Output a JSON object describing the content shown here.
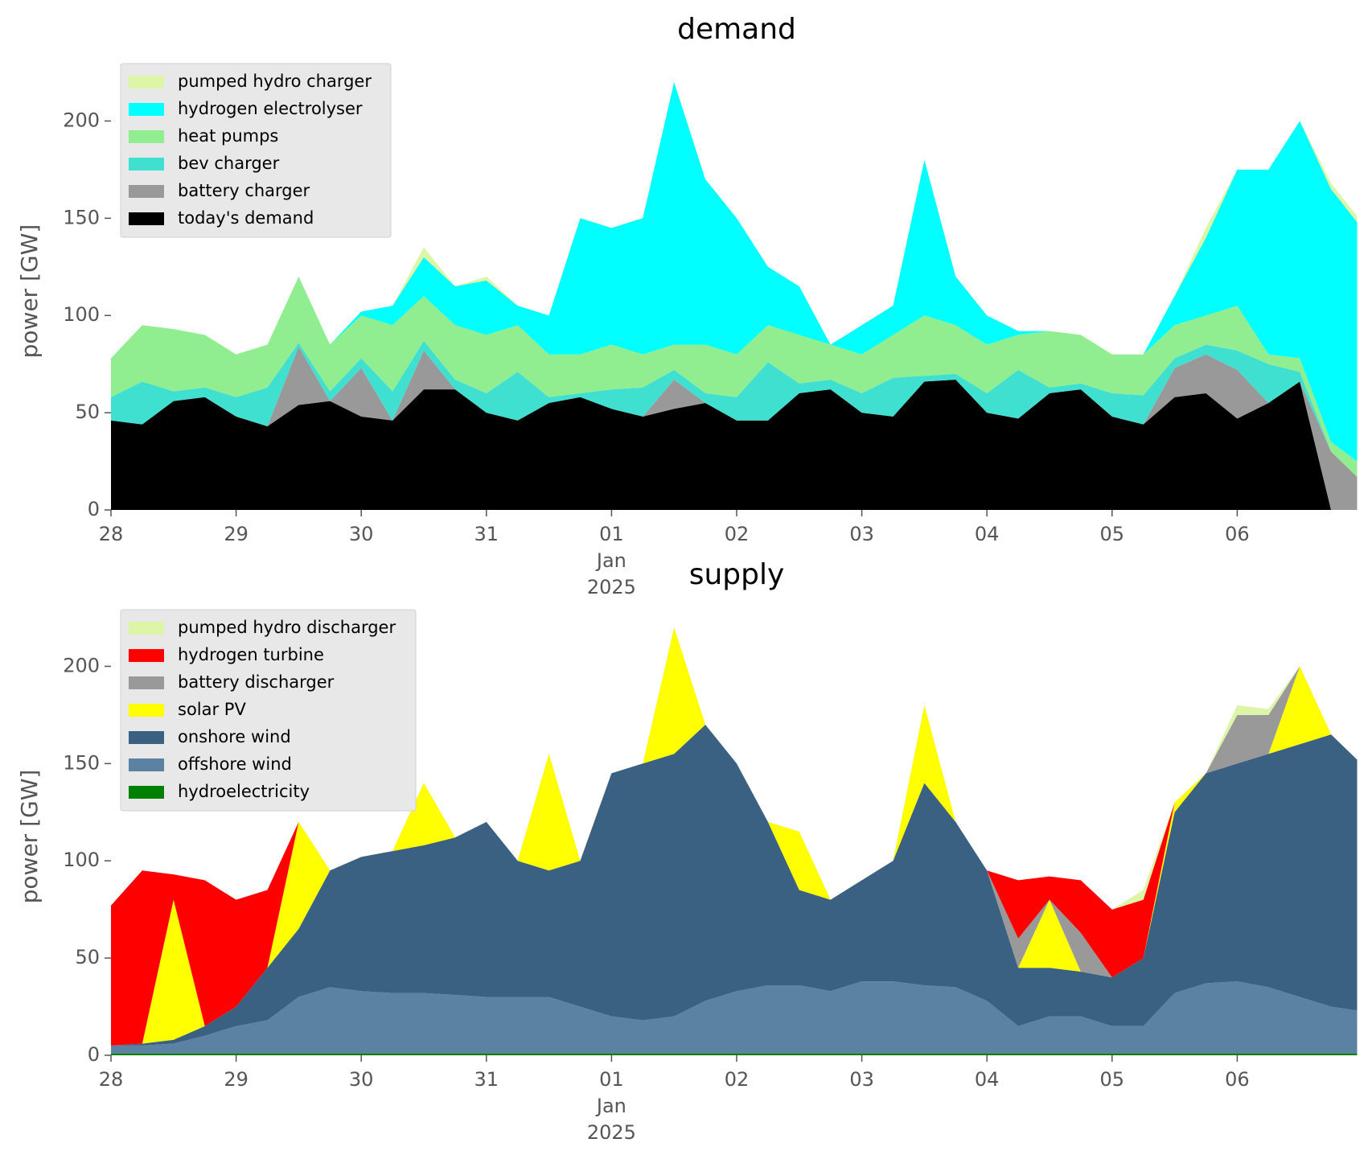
{
  "chart_data": [
    {
      "type": "stacked_area",
      "title": "demand",
      "ylabel": "power [GW]",
      "x": [
        "2024-12-28T00:00",
        "2024-12-28T06:00",
        "2024-12-28T12:00",
        "2024-12-28T18:00",
        "2024-12-29T00:00",
        "2024-12-29T06:00",
        "2024-12-29T12:00",
        "2024-12-29T18:00",
        "2024-12-30T00:00",
        "2024-12-30T06:00",
        "2024-12-30T12:00",
        "2024-12-30T18:00",
        "2024-12-31T00:00",
        "2024-12-31T06:00",
        "2024-12-31T12:00",
        "2024-12-31T18:00",
        "2025-01-01T00:00",
        "2025-01-01T06:00",
        "2025-01-01T12:00",
        "2025-01-01T18:00",
        "2025-01-02T00:00",
        "2025-01-02T06:00",
        "2025-01-02T12:00",
        "2025-01-02T18:00",
        "2025-01-03T00:00",
        "2025-01-03T06:00",
        "2025-01-03T12:00",
        "2025-01-03T18:00",
        "2025-01-04T00:00",
        "2025-01-04T06:00",
        "2025-01-04T12:00",
        "2025-01-04T18:00",
        "2025-01-05T00:00",
        "2025-01-05T06:00",
        "2025-01-05T12:00",
        "2025-01-05T18:00",
        "2025-01-06T00:00",
        "2025-01-06T06:00",
        "2025-01-06T12:00",
        "2025-01-06T18:00",
        "2025-01-06T23:00"
      ],
      "series": [
        {
          "name": "today's demand",
          "color": "#000000",
          "values": [
            46,
            44,
            56,
            58,
            48,
            43,
            54,
            56,
            48,
            46,
            62,
            62,
            50,
            46,
            55,
            58,
            52,
            48,
            52,
            55,
            46,
            46,
            60,
            62,
            50,
            48,
            66,
            67,
            50,
            47,
            60,
            62,
            48,
            44,
            58,
            60,
            47,
            55,
            66,
            0,
            0
          ]
        },
        {
          "name": "battery charger",
          "color": "#999999",
          "values": [
            0,
            0,
            0,
            0,
            0,
            0,
            30,
            0,
            25,
            0,
            20,
            0,
            0,
            0,
            0,
            0,
            0,
            0,
            15,
            0,
            0,
            0,
            0,
            0,
            0,
            0,
            0,
            0,
            0,
            0,
            0,
            0,
            0,
            0,
            15,
            20,
            25,
            0,
            0,
            30,
            17
          ]
        },
        {
          "name": "bev charger",
          "color": "#40e0d0",
          "values": [
            12,
            22,
            5,
            5,
            10,
            20,
            2,
            5,
            5,
            15,
            5,
            5,
            10,
            25,
            3,
            2,
            10,
            15,
            5,
            5,
            12,
            30,
            5,
            5,
            10,
            20,
            3,
            3,
            10,
            25,
            3,
            3,
            12,
            15,
            5,
            5,
            10,
            20,
            5,
            0,
            0
          ]
        },
        {
          "name": "heat pumps",
          "color": "#90ee90",
          "values": [
            20,
            29,
            32,
            27,
            22,
            22,
            34,
            24,
            22,
            34,
            23,
            28,
            30,
            24,
            22,
            20,
            23,
            17,
            13,
            25,
            22,
            19,
            25,
            18,
            20,
            22,
            31,
            25,
            25,
            18,
            29,
            25,
            20,
            21,
            17,
            15,
            23,
            5,
            7,
            5,
            8
          ]
        },
        {
          "name": "hydrogen electrolyser",
          "color": "#00ffff",
          "values": [
            0,
            0,
            0,
            0,
            0,
            0,
            0,
            0,
            2,
            10,
            20,
            20,
            28,
            10,
            20,
            70,
            60,
            70,
            135,
            85,
            70,
            30,
            25,
            0,
            15,
            15,
            80,
            25,
            15,
            2,
            0,
            0,
            0,
            0,
            15,
            40,
            70,
            95,
            122,
            130,
            123
          ]
        },
        {
          "name": "pumped hydro charger",
          "color": "#ddf5a6",
          "values": [
            0,
            0,
            0,
            0,
            0,
            0,
            0,
            0,
            0,
            0,
            5,
            0,
            2,
            0,
            0,
            0,
            0,
            0,
            0,
            0,
            0,
            0,
            0,
            0,
            0,
            0,
            0,
            0,
            0,
            0,
            0,
            0,
            0,
            0,
            0,
            5,
            0,
            0,
            0,
            3,
            3
          ]
        }
      ],
      "xlim": [
        "2024-12-28T00:00",
        "2025-01-07T00:00"
      ],
      "xticks": [
        {
          "value": "2024-12-28T00:00",
          "label": "28"
        },
        {
          "value": "2024-12-29T00:00",
          "label": "29"
        },
        {
          "value": "2024-12-30T00:00",
          "label": "30"
        },
        {
          "value": "2024-12-31T00:00",
          "label": "31"
        },
        {
          "value": "2025-01-01T00:00",
          "label": "01\nJan\n2025"
        },
        {
          "value": "2025-01-02T00:00",
          "label": "02"
        },
        {
          "value": "2025-01-03T00:00",
          "label": "03"
        },
        {
          "value": "2025-01-04T00:00",
          "label": "04"
        },
        {
          "value": "2025-01-05T00:00",
          "label": "05"
        },
        {
          "value": "2025-01-06T00:00",
          "label": "06"
        }
      ],
      "ylim": [
        0,
        225
      ],
      "yticks": [
        0,
        50,
        100,
        150,
        200
      ],
      "legend": "upper left"
    },
    {
      "type": "stacked_area",
      "title": "supply",
      "ylabel": "power [GW]",
      "x": [
        "2024-12-28T00:00",
        "2024-12-28T06:00",
        "2024-12-28T12:00",
        "2024-12-28T18:00",
        "2024-12-29T00:00",
        "2024-12-29T06:00",
        "2024-12-29T12:00",
        "2024-12-29T18:00",
        "2024-12-30T00:00",
        "2024-12-30T06:00",
        "2024-12-30T12:00",
        "2024-12-30T18:00",
        "2024-12-31T00:00",
        "2024-12-31T06:00",
        "2024-12-31T12:00",
        "2024-12-31T18:00",
        "2025-01-01T00:00",
        "2025-01-01T06:00",
        "2025-01-01T12:00",
        "2025-01-01T18:00",
        "2025-01-02T00:00",
        "2025-01-02T06:00",
        "2025-01-02T12:00",
        "2025-01-02T18:00",
        "2025-01-03T00:00",
        "2025-01-03T06:00",
        "2025-01-03T12:00",
        "2025-01-03T18:00",
        "2025-01-04T00:00",
        "2025-01-04T06:00",
        "2025-01-04T12:00",
        "2025-01-04T18:00",
        "2025-01-05T00:00",
        "2025-01-05T06:00",
        "2025-01-05T12:00",
        "2025-01-05T18:00",
        "2025-01-06T00:00",
        "2025-01-06T06:00",
        "2025-01-06T12:00",
        "2025-01-06T18:00",
        "2025-01-06T23:00"
      ],
      "series": [
        {
          "name": "hydroelectricity",
          "color": "#008000",
          "values": [
            1,
            1,
            1,
            1,
            1,
            1,
            1,
            1,
            1,
            1,
            1,
            1,
            1,
            1,
            1,
            1,
            1,
            1,
            1,
            1,
            1,
            1,
            1,
            1,
            1,
            1,
            1,
            1,
            1,
            1,
            1,
            1,
            1,
            1,
            1,
            1,
            1,
            1,
            1,
            1,
            1
          ]
        },
        {
          "name": "offshore wind",
          "color": "#5b82a3",
          "values": [
            4,
            4,
            5,
            9,
            14,
            17,
            29,
            34,
            32,
            31,
            31,
            30,
            29,
            29,
            29,
            24,
            19,
            17,
            19,
            27,
            32,
            35,
            35,
            32,
            37,
            37,
            35,
            34,
            27,
            14,
            19,
            19,
            14,
            14,
            31,
            36,
            37,
            34,
            29,
            24,
            22
          ]
        },
        {
          "name": "onshore wind",
          "color": "#3b6182",
          "values": [
            0,
            1,
            2,
            5,
            10,
            27,
            35,
            60,
            69,
            73,
            76,
            81,
            90,
            70,
            65,
            75,
            125,
            132,
            135,
            142,
            117,
            84,
            49,
            47,
            52,
            62,
            104,
            85,
            67,
            30,
            25,
            23,
            25,
            35,
            93,
            108,
            112,
            120,
            130,
            140,
            129
          ]
        },
        {
          "name": "solar PV",
          "color": "#ffff00",
          "values": [
            0,
            0,
            72,
            0,
            0,
            0,
            55,
            0,
            0,
            0,
            32,
            0,
            0,
            0,
            60,
            0,
            0,
            0,
            65,
            0,
            0,
            0,
            30,
            0,
            0,
            0,
            40,
            0,
            0,
            0,
            35,
            0,
            0,
            0,
            5,
            0,
            0,
            0,
            40,
            0,
            0
          ]
        },
        {
          "name": "battery discharger",
          "color": "#999999",
          "values": [
            0,
            0,
            0,
            0,
            0,
            0,
            0,
            0,
            0,
            0,
            0,
            0,
            0,
            0,
            0,
            0,
            0,
            0,
            0,
            0,
            0,
            0,
            0,
            0,
            0,
            0,
            0,
            0,
            0,
            15,
            0,
            20,
            0,
            0,
            0,
            0,
            25,
            20,
            0,
            0,
            0
          ]
        },
        {
          "name": "hydrogen turbine",
          "color": "#ff0000",
          "values": [
            72,
            89,
            13,
            75,
            55,
            40,
            0,
            0,
            0,
            0,
            0,
            0,
            0,
            0,
            0,
            0,
            0,
            0,
            0,
            0,
            0,
            0,
            0,
            0,
            0,
            0,
            0,
            0,
            0,
            30,
            12,
            27,
            35,
            30,
            0,
            0,
            0,
            0,
            0,
            0,
            0
          ]
        },
        {
          "name": "pumped hydro discharger",
          "color": "#ddf5a6",
          "values": [
            0,
            0,
            0,
            0,
            0,
            0,
            0,
            0,
            0,
            0,
            0,
            0,
            0,
            0,
            0,
            0,
            0,
            0,
            0,
            0,
            0,
            0,
            0,
            0,
            0,
            0,
            0,
            0,
            0,
            0,
            0,
            0,
            0,
            5,
            0,
            0,
            5,
            3,
            0,
            0,
            0
          ]
        }
      ],
      "xlim": [
        "2024-12-28T00:00",
        "2025-01-07T00:00"
      ],
      "xticks": [
        {
          "value": "2024-12-28T00:00",
          "label": "28"
        },
        {
          "value": "2024-12-29T00:00",
          "label": "29"
        },
        {
          "value": "2024-12-30T00:00",
          "label": "30"
        },
        {
          "value": "2024-12-31T00:00",
          "label": "31"
        },
        {
          "value": "2025-01-01T00:00",
          "label": "01\nJan\n2025"
        },
        {
          "value": "2025-01-02T00:00",
          "label": "02"
        },
        {
          "value": "2025-01-03T00:00",
          "label": "03"
        },
        {
          "value": "2025-01-04T00:00",
          "label": "04"
        },
        {
          "value": "2025-01-05T00:00",
          "label": "05"
        },
        {
          "value": "2025-01-06T00:00",
          "label": "06"
        }
      ],
      "ylim": [
        0,
        225
      ],
      "yticks": [
        0,
        50,
        100,
        150,
        200
      ],
      "legend": "upper left"
    }
  ]
}
